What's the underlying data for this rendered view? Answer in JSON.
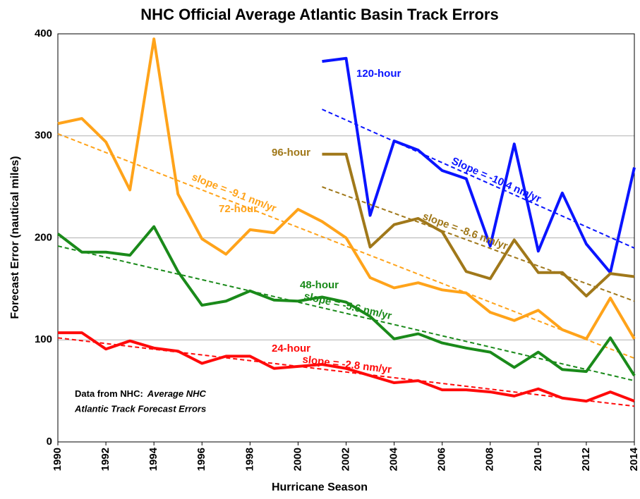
{
  "chart_data": {
    "type": "line",
    "title": "NHC Official Average Atlantic Basin Track Errors",
    "xlabel": "Hurricane Season",
    "ylabel": "Forecast Error  (nautical miles)",
    "x": [
      1990,
      1991,
      1992,
      1993,
      1994,
      1995,
      1996,
      1997,
      1998,
      1999,
      2000,
      2001,
      2002,
      2003,
      2004,
      2005,
      2006,
      2007,
      2008,
      2009,
      2010,
      2011,
      2012,
      2013,
      2014
    ],
    "xlim": [
      1990,
      2014
    ],
    "xticks": [
      1990,
      1992,
      1994,
      1996,
      1998,
      2000,
      2002,
      2004,
      2006,
      2008,
      2010,
      2012,
      2014
    ],
    "ylim": [
      0,
      400
    ],
    "yticks": [
      0,
      100,
      200,
      300,
      400
    ],
    "grid": true,
    "series": [
      {
        "name": "120-hour",
        "color": "#0a14ff",
        "values": [
          null,
          null,
          null,
          null,
          null,
          null,
          null,
          null,
          null,
          null,
          null,
          373,
          376,
          222,
          295,
          286,
          266,
          258,
          192,
          292,
          187,
          244,
          194,
          166,
          269
        ],
        "trend": {
          "label": "Slope = -10.4 nm/yr",
          "x": [
            2001,
            2014
          ],
          "values": [
            326,
            190
          ]
        }
      },
      {
        "name": "96-hour",
        "color": "#a0781a",
        "values": [
          null,
          null,
          null,
          null,
          null,
          null,
          null,
          null,
          null,
          null,
          null,
          282,
          282,
          191,
          213,
          219,
          206,
          167,
          160,
          198,
          166,
          166,
          143,
          165,
          162
        ],
        "trend": {
          "label": "slope = -8.6 nm/yr",
          "x": [
            2001,
            2014
          ],
          "values": [
            250,
            138
          ]
        }
      },
      {
        "name": "72-hour",
        "color": "#ffa31a",
        "values": [
          312,
          317,
          294,
          247,
          395,
          243,
          199,
          184,
          208,
          205,
          228,
          216,
          200,
          161,
          151,
          156,
          149,
          146,
          127,
          119,
          129,
          110,
          101,
          141,
          101
        ],
        "trend": {
          "label": "slope = -9.1 nm/yr",
          "x": [
            1990,
            2014
          ],
          "values": [
            302,
            82
          ]
        }
      },
      {
        "name": "48-hour",
        "color": "#1a8a1a",
        "values": [
          204,
          186,
          186,
          183,
          211,
          167,
          134,
          138,
          148,
          139,
          138,
          142,
          137,
          123,
          101,
          106,
          97,
          92,
          88,
          73,
          88,
          71,
          69,
          102,
          65
        ],
        "trend": {
          "label": "slope = -5.6 nm/yr",
          "x": [
            1990,
            2014
          ],
          "values": [
            192,
            60
          ]
        }
      },
      {
        "name": "24-hour",
        "color": "#ff0a0a",
        "values": [
          107,
          107,
          91,
          99,
          92,
          89,
          77,
          84,
          84,
          72,
          74,
          76,
          72,
          65,
          58,
          60,
          51,
          51,
          49,
          45,
          52,
          43,
          40,
          49,
          40
        ],
        "trend": {
          "label": "slope = -2.8 nm/yr",
          "x": [
            1990,
            2014
          ],
          "values": [
            102,
            35
          ]
        }
      }
    ],
    "note": [
      "Data from NHC:",
      "Average NHC",
      "Atlantic Track Forecast Errors"
    ]
  }
}
